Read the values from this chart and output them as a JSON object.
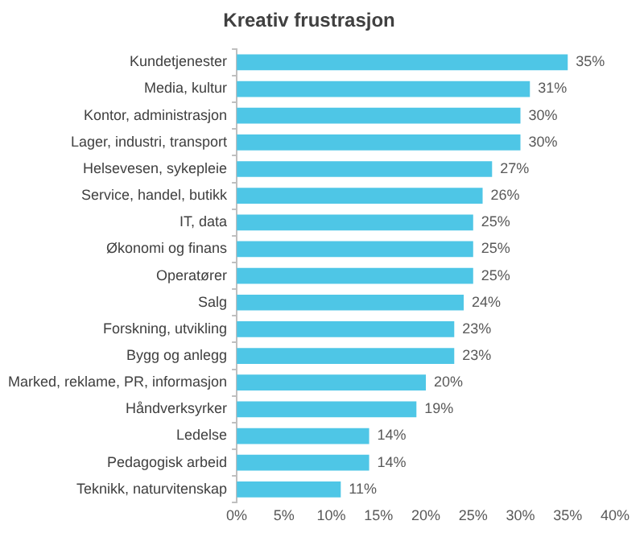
{
  "chart_data": {
    "type": "bar",
    "orientation": "horizontal",
    "title": "Kreativ frustrasjon",
    "categories": [
      "Kundetjenester",
      "Media, kultur",
      "Kontor, administrasjon",
      "Lager, industri, transport",
      "Helsevesen, sykepleie",
      "Service, handel, butikk",
      "IT, data",
      "Økonomi og finans",
      "Operatører",
      "Salg",
      "Forskning, utvikling",
      "Bygg og anlegg",
      "Marked, reklame, PR, informasjon",
      "Håndverksyrker",
      "Ledelse",
      "Pedagogisk arbeid",
      "Teknikk, naturvitenskap"
    ],
    "values": [
      35,
      31,
      30,
      30,
      27,
      26,
      25,
      25,
      25,
      24,
      23,
      23,
      20,
      19,
      14,
      14,
      11
    ],
    "value_labels": [
      "35%",
      "31%",
      "30%",
      "30%",
      "27%",
      "26%",
      "25%",
      "25%",
      "25%",
      "24%",
      "23%",
      "23%",
      "20%",
      "19%",
      "14%",
      "14%",
      "11%"
    ],
    "color": "#4ec6e6",
    "xlim": [
      0,
      40
    ],
    "xticks": [
      {
        "value": 0,
        "label": "0%"
      },
      {
        "value": 5,
        "label": "5%"
      },
      {
        "value": 10,
        "label": "10%"
      },
      {
        "value": 15,
        "label": "15%"
      },
      {
        "value": 20,
        "label": "20%"
      },
      {
        "value": 25,
        "label": "25%"
      },
      {
        "value": 30,
        "label": "30%"
      },
      {
        "value": 35,
        "label": "35%"
      },
      {
        "value": 40,
        "label": "40%"
      }
    ],
    "grid": false,
    "legend": false
  }
}
